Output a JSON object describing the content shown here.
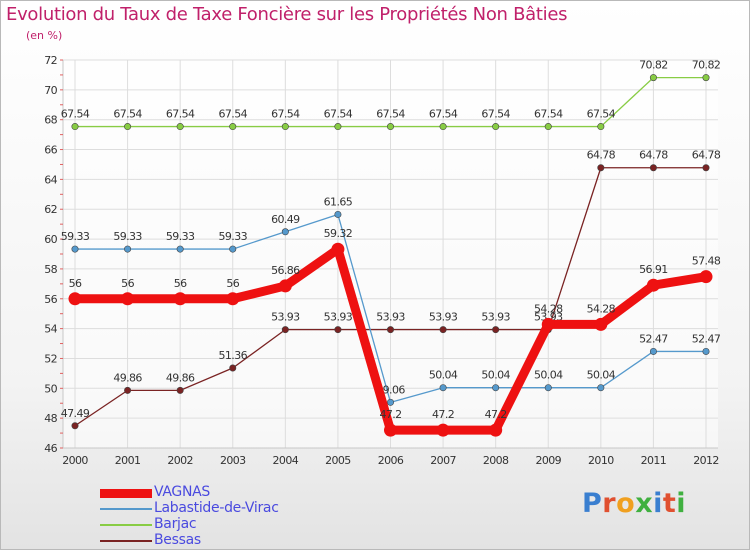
{
  "title": "Evolution du Taux de Taxe Foncière sur les Propriétés Non Bâties",
  "unit_label": "(en %)",
  "logo_text": "Proxiti",
  "chart_data": {
    "type": "line",
    "x": [
      "2000",
      "2001",
      "2002",
      "2003",
      "2004",
      "2005",
      "2006",
      "2007",
      "2008",
      "2009",
      "2010",
      "2011",
      "2012"
    ],
    "ylim": [
      46,
      72
    ],
    "yticks": [
      46,
      48,
      50,
      52,
      54,
      56,
      58,
      60,
      62,
      64,
      66,
      68,
      70,
      72
    ],
    "grid": true,
    "legend_position": "bottom-left",
    "series": [
      {
        "name": "Bessas",
        "color": "#7a2323",
        "values": [
          47.49,
          49.86,
          49.86,
          51.36,
          53.93,
          53.93,
          53.93,
          53.93,
          53.93,
          53.93,
          64.78,
          64.78,
          64.78
        ],
        "labels": [
          "47.49",
          "49.86",
          "49.86",
          "51.36",
          "53.93",
          "53.93",
          "53.93",
          "53.93",
          "53.93",
          "53.93",
          "64.78",
          "64.78",
          "64.78"
        ]
      },
      {
        "name": "Barjac",
        "color": "#88cc44",
        "values": [
          67.54,
          67.54,
          67.54,
          67.54,
          67.54,
          67.54,
          67.54,
          67.54,
          67.54,
          67.54,
          67.54,
          70.82,
          70.82
        ],
        "labels": [
          "67.54",
          "67.54",
          "67.54",
          "67.54",
          "67.54",
          "67.54",
          "67.54",
          "67.54",
          "67.54",
          "67.54",
          "67.54",
          "70.82",
          "70.82"
        ]
      },
      {
        "name": "Labastide-de-Virac",
        "color": "#5599cc",
        "values": [
          59.33,
          59.33,
          59.33,
          59.33,
          60.49,
          61.65,
          49.06,
          50.04,
          50.04,
          50.04,
          50.04,
          52.47,
          52.47
        ],
        "labels": [
          "59.33",
          "59.33",
          "59.33",
          "59.33",
          "60.49",
          "61.65",
          "49.06",
          "50.04",
          "50.04",
          "50.04",
          "50.04",
          "52.47",
          "52.47"
        ]
      },
      {
        "name": "VAGNAS",
        "color": "#ee1111",
        "values": [
          56,
          56,
          56,
          56,
          56.86,
          59.32,
          47.2,
          47.2,
          47.2,
          54.28,
          54.28,
          56.91,
          57.48
        ],
        "labels": [
          "56",
          "56",
          "56",
          "56",
          "56.86",
          "59.32",
          "47.2",
          "47.2",
          "47.2",
          "54.28",
          "54.28",
          "56.91",
          "57.48"
        ]
      }
    ],
    "legend": [
      "VAGNAS",
      "Labastide-de-Virac",
      "Barjac",
      "Bessas"
    ]
  }
}
